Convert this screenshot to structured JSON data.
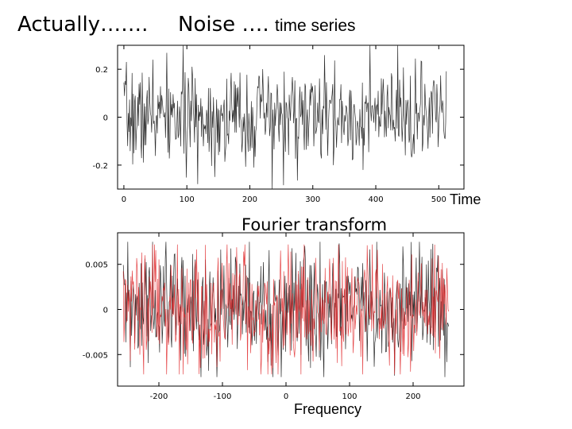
{
  "slide": {
    "title_left": "Actually…….",
    "title_mid": "Noise ….",
    "title_sub": "time series",
    "label_fourier": "Fourier transform",
    "label_time": "Time",
    "label_frequency": "Frequency"
  },
  "colors": {
    "series_black": "#222222",
    "series_red": "#e0282a",
    "axis": "#000000"
  },
  "chart_data": [
    {
      "type": "line",
      "xlim": [
        -10,
        540
      ],
      "ylim": [
        -0.3,
        0.3
      ],
      "xticks": [
        0,
        100,
        200,
        300,
        400,
        500
      ],
      "yticks": [
        -0.2,
        0,
        0.2
      ],
      "ytick_labels": [
        "-0.2",
        "0",
        "0.2"
      ],
      "grid": false,
      "x_range": [
        0,
        512
      ],
      "series": [
        {
          "color": "#222222",
          "n_points": 512,
          "amplitude": 0.1,
          "peaks": [
            0.24,
            -0.3
          ]
        }
      ]
    },
    {
      "type": "line",
      "xlim": [
        -265,
        280
      ],
      "ylim": [
        -0.0085,
        0.0085
      ],
      "xticks": [
        -200,
        -100,
        0,
        100,
        200
      ],
      "yticks": [
        -0.005,
        0,
        0.005
      ],
      "ytick_labels": [
        "-0.005",
        "0",
        "0.005"
      ],
      "grid": false,
      "x_range": [
        -256,
        256
      ],
      "series": [
        {
          "color": "#222222",
          "n_points": 512,
          "amplitude": 0.0035,
          "peaks": [
            0.0075,
            -0.0075
          ]
        },
        {
          "color": "#e0282a",
          "n_points": 512,
          "amplitude": 0.0035,
          "peaks": [
            0.0072,
            -0.0065
          ]
        }
      ]
    }
  ]
}
